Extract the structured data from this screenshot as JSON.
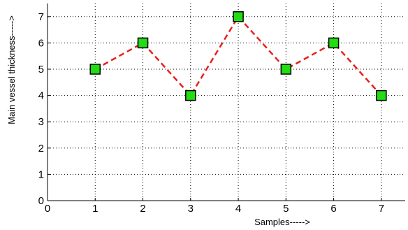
{
  "chart_data": {
    "type": "line",
    "title": "",
    "xlabel": "Samples----->",
    "ylabel": "Main vessel thickness----->",
    "xlim": [
      0,
      7.5
    ],
    "ylim": [
      0,
      7.5
    ],
    "xticks": [
      0,
      1,
      2,
      3,
      4,
      5,
      6,
      7
    ],
    "yticks": [
      0,
      1,
      2,
      3,
      4,
      5,
      6,
      7
    ],
    "grid": true,
    "series": [
      {
        "x": [
          1,
          2,
          3,
          4,
          5,
          6,
          7
        ],
        "y": [
          5,
          6,
          4,
          7,
          5,
          6,
          4
        ],
        "line_color": "#e8201a",
        "line_style": "dashed",
        "marker": "square",
        "marker_color": "#22dd11"
      }
    ]
  }
}
